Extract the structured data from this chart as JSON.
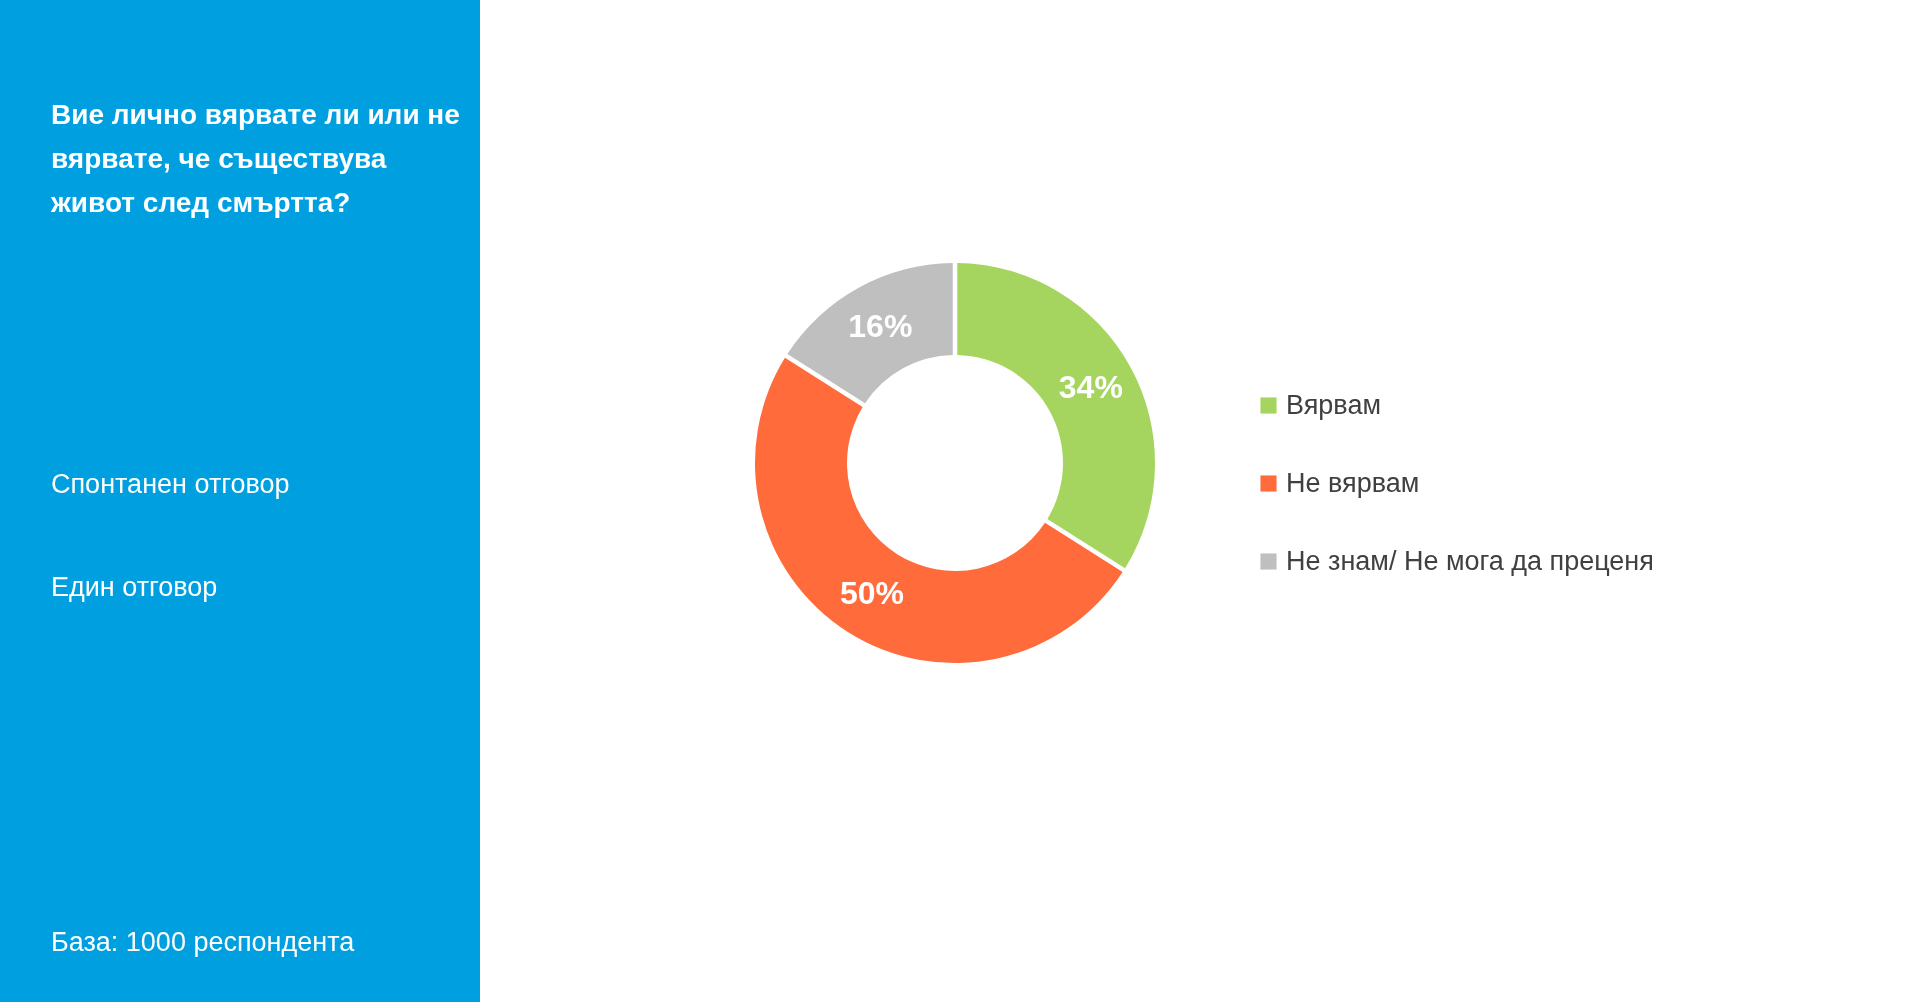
{
  "chart_data": {
    "type": "donut",
    "title": "Вие лично вярвате ли или не вярвате, че съществува живот след смъртта?",
    "annotations": [
      "Спонтанен отговор",
      "Един отговор",
      "База:  1000 респондента"
    ],
    "categories": [
      "Вярвам",
      "Не вярвам",
      "Не знам/ Не мога да преценя"
    ],
    "values": [
      34,
      50,
      16
    ],
    "colors": [
      "#a5d55e",
      "#ff6b3a",
      "#bfbfbf"
    ],
    "value_labels": [
      "34%",
      "50%",
      "16%"
    ],
    "legend": "right"
  }
}
